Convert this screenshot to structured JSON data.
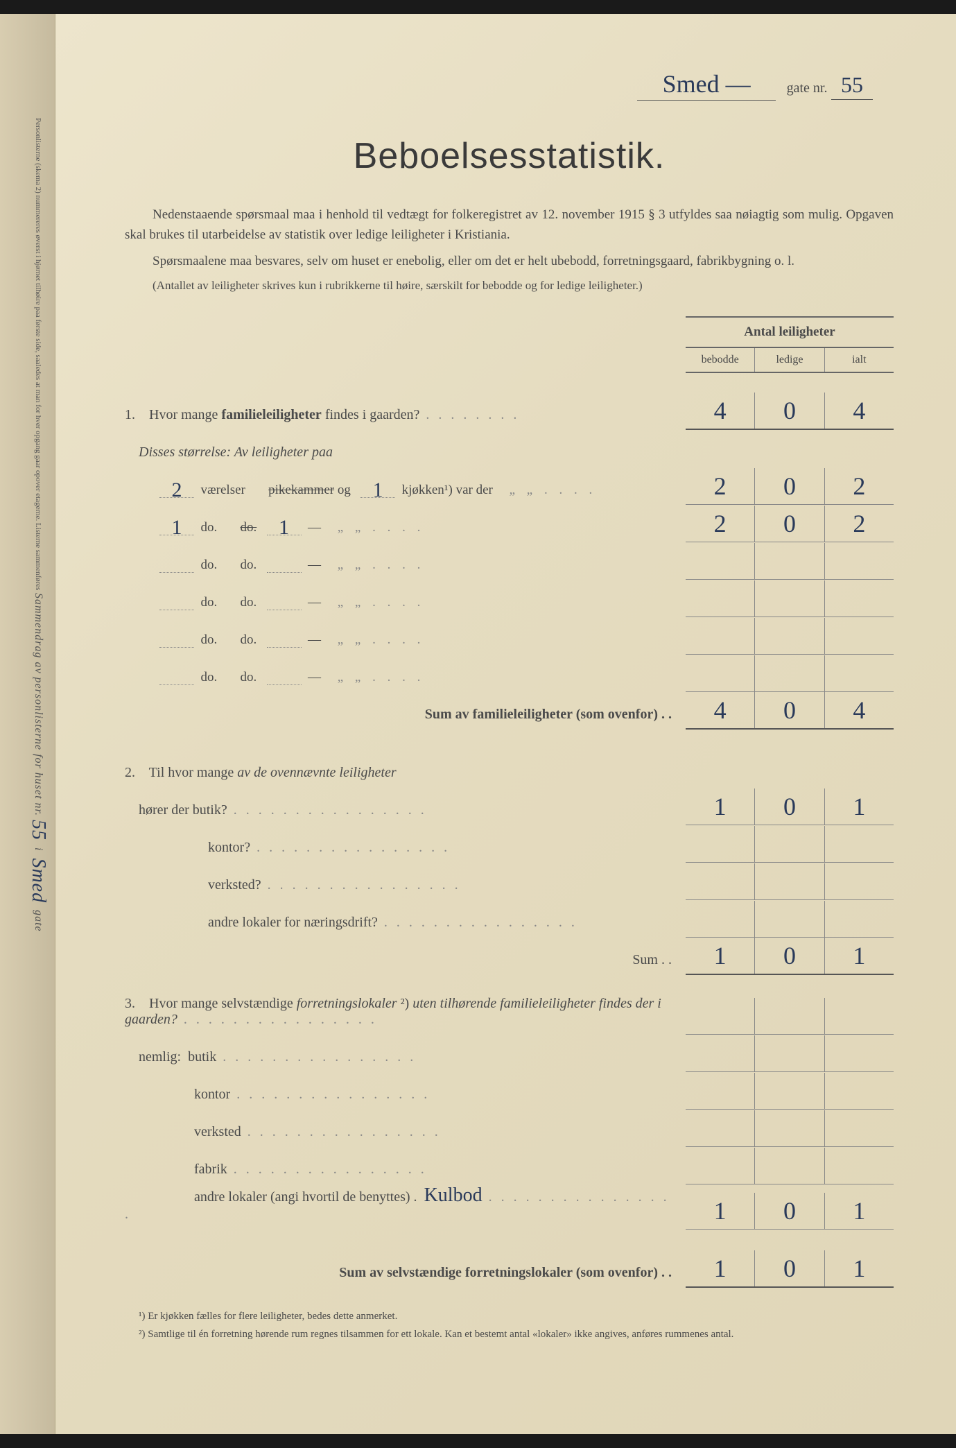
{
  "header": {
    "street_name_hw": "Smed —",
    "gate_label": "gate nr.",
    "gate_nr_hw": "55"
  },
  "title": "Beboelsesstatistik.",
  "intro_paragraphs": [
    "Nedenstaaende spørsmaal maa i henhold til vedtægt for folkeregistret av 12. november 1915 § 3 utfyldes saa nøiagtig som mulig. Opgaven skal brukes til utarbeidelse av statistik over ledige leiligheter i Kristiania.",
    "Spørsmaalene maa besvares, selv om huset er enebolig, eller om det er helt ubebodd, forretningsgaard, fabrikbygning o. l.",
    "(Antallet av leiligheter skrives kun i rubrikkerne til høire, særskilt for bebodde og for ledige leiligheter.)"
  ],
  "col_header": {
    "main": "Antal leiligheter",
    "sub": [
      "bebodde",
      "ledige",
      "ialt"
    ]
  },
  "q1": {
    "text": "Hvor mange familieleiligheter findes i gaarden?",
    "subtitle": "Disses størrelse:  Av leiligheter paa",
    "values": [
      "4",
      "0",
      "4"
    ],
    "rows": [
      {
        "vaerelser": "2",
        "pike_strike": "pikekammer",
        "kjokken": "1",
        "vals": [
          "2",
          "0",
          "2"
        ]
      },
      {
        "vaerelser": "1",
        "pike_strike": "do.",
        "kjokken": "1",
        "vals": [
          "2",
          "0",
          "2"
        ]
      },
      {
        "vaerelser": "",
        "pike_strike": "",
        "kjokken": "",
        "vals": [
          "",
          "",
          ""
        ]
      },
      {
        "vaerelser": "",
        "pike_strike": "",
        "kjokken": "",
        "vals": [
          "",
          "",
          ""
        ]
      },
      {
        "vaerelser": "",
        "pike_strike": "",
        "kjokken": "",
        "vals": [
          "",
          "",
          ""
        ]
      },
      {
        "vaerelser": "",
        "pike_strike": "",
        "kjokken": "",
        "vals": [
          "",
          "",
          ""
        ]
      }
    ],
    "sum_label": "Sum av familieleiligheter (som ovenfor) . .",
    "sum_vals": [
      "4",
      "0",
      "4"
    ]
  },
  "q2": {
    "text": "Til hvor mange av de ovennævnte leiligheter",
    "lines": [
      {
        "label": "hører der butik?",
        "vals": [
          "1",
          "0",
          "1"
        ]
      },
      {
        "label": "kontor?",
        "vals": [
          "",
          "",
          ""
        ]
      },
      {
        "label": "verksted?",
        "vals": [
          "",
          "",
          ""
        ]
      },
      {
        "label": "andre lokaler for næringsdrift?",
        "vals": [
          "",
          "",
          ""
        ]
      }
    ],
    "sum_label": "Sum . .",
    "sum_vals": [
      "1",
      "0",
      "1"
    ]
  },
  "q3": {
    "text": "Hvor mange selvstændige forretningslokaler ²) uten tilhørende familieleiligheter findes der i gaarden?",
    "nemlig": "nemlig:",
    "lines": [
      {
        "label": "butik",
        "vals": [
          "",
          "",
          ""
        ]
      },
      {
        "label": "kontor",
        "vals": [
          "",
          "",
          ""
        ]
      },
      {
        "label": "verksted",
        "vals": [
          "",
          "",
          ""
        ]
      },
      {
        "label": "fabrik",
        "vals": [
          "",
          "",
          ""
        ]
      },
      {
        "label": "andre lokaler (angi hvortil de benyttes) .",
        "hw": "Kulbod",
        "vals": [
          "1",
          "0",
          "1"
        ]
      }
    ],
    "sum_label": "Sum av selvstændige forretningslokaler (som ovenfor) . .",
    "sum_vals": [
      "1",
      "0",
      "1"
    ]
  },
  "footnotes": [
    "¹) Er kjøkken fælles for flere leiligheter, bedes dette anmerket.",
    "²) Samtlige til én forretning hørende rum regnes tilsammen for ett lokale.  Kan et bestemt antal «lokaler» ikke angives, anføres rummenes antal."
  ],
  "spine": {
    "main": "Sammendrag av personlisterne for huset nr.",
    "nr_hw": "55",
    "street_hw": "Smed",
    "gate": "gate",
    "small": "Personlisterne (skema 2) nummereres øverst i hjørnet tilhøire paa første side, saaledes at man for hver opgang gaar opover etagerne.  Listerne sammenføres"
  },
  "colors": {
    "paper": "#e8e0c8",
    "ink": "#4a4a4a",
    "handwriting": "#2a3a5a",
    "rule": "#888888"
  }
}
